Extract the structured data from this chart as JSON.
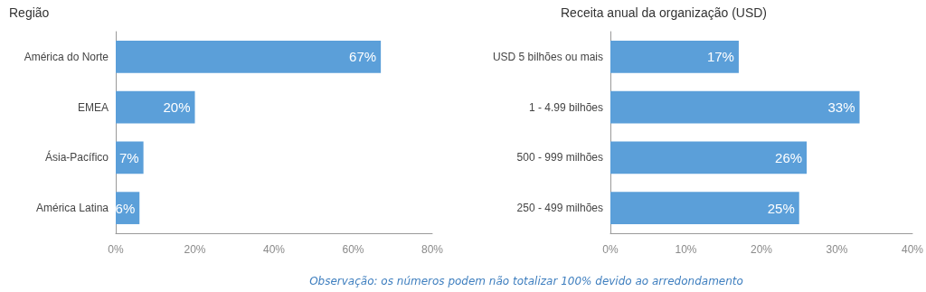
{
  "chart_data": [
    {
      "type": "bar",
      "orientation": "horizontal",
      "title": "Região",
      "categories": [
        "América do Norte",
        "EMEA",
        "Ásia-Pacífico",
        "América Latina"
      ],
      "values": [
        67,
        20,
        7,
        6
      ],
      "value_labels": [
        "67%",
        "20%",
        "7%",
        "6%"
      ],
      "color": "#5b9fd9",
      "xlim": [
        0,
        80
      ],
      "xticks": [
        {
          "value": 0,
          "label": "0%"
        },
        {
          "value": 20,
          "label": "20%"
        },
        {
          "value": 40,
          "label": "40%"
        },
        {
          "value": 60,
          "label": "60%"
        },
        {
          "value": 80,
          "label": "80%"
        }
      ]
    },
    {
      "type": "bar",
      "orientation": "horizontal",
      "title": "Receita anual da organização (USD)",
      "categories": [
        "USD 5 bilhões ou mais",
        "1 - 4.99 bilhões",
        "500 - 999 milhões",
        "250 - 499 milhões"
      ],
      "values": [
        17,
        33,
        26,
        25
      ],
      "value_labels": [
        "17%",
        "33%",
        "26%",
        "25%"
      ],
      "color": "#5b9fd9",
      "xlim": [
        0,
        40
      ],
      "xticks": [
        {
          "value": 0,
          "label": "0%"
        },
        {
          "value": 10,
          "label": "10%"
        },
        {
          "value": 20,
          "label": "20%"
        },
        {
          "value": 30,
          "label": "30%"
        },
        {
          "value": 40,
          "label": "40%"
        }
      ],
      "annotations": [
        "Observação: os números podem não totalizar 100% devido ao arredondamento"
      ]
    }
  ]
}
